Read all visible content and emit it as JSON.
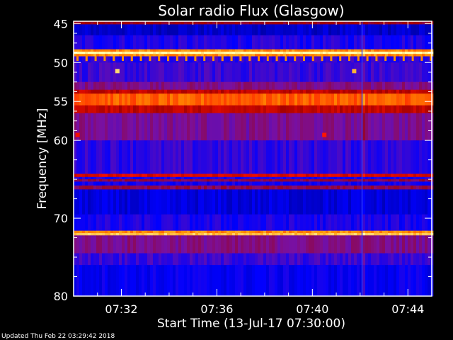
{
  "chart_data": {
    "type": "heatmap",
    "title": "Solar radio Flux (Glasgow)",
    "xlabel": "Start Time (13-Jul-17 07:30:00)",
    "ylabel": "Frequency [MHz]",
    "xlim": [
      "07:30",
      "07:45"
    ],
    "ylim": [
      80,
      44.7
    ],
    "x_ticks": [
      "07:32",
      "07:36",
      "07:40",
      "07:44"
    ],
    "y_ticks": [
      "45",
      "50",
      "55",
      "60",
      "70",
      "80"
    ],
    "colormap": [
      "#000000",
      "#00008c",
      "#0000ff",
      "#7a10a0",
      "#a00000",
      "#ff1000",
      "#ff9000",
      "#ffffb0"
    ],
    "intensity_bands_mhz": [
      {
        "from": 44.7,
        "to": 45.1,
        "level": 0.55
      },
      {
        "from": 45.1,
        "to": 46.5,
        "level": 0.22
      },
      {
        "from": 46.5,
        "to": 48.3,
        "level": 0.32
      },
      {
        "from": 48.3,
        "to": 48.6,
        "level": 0.85
      },
      {
        "from": 48.6,
        "to": 48.9,
        "level": 1.0
      },
      {
        "from": 48.9,
        "to": 49.2,
        "level": 0.85
      },
      {
        "from": 49.2,
        "to": 50.0,
        "level": 0.34
      },
      {
        "from": 50.0,
        "to": 52.5,
        "level": 0.35
      },
      {
        "from": 52.5,
        "to": 53.5,
        "level": 0.45
      },
      {
        "from": 53.5,
        "to": 54.0,
        "level": 0.62
      },
      {
        "from": 54.0,
        "to": 55.5,
        "level": 0.8
      },
      {
        "from": 55.5,
        "to": 56.5,
        "level": 0.62
      },
      {
        "from": 56.5,
        "to": 60.0,
        "level": 0.44
      },
      {
        "from": 60.0,
        "to": 64.3,
        "level": 0.34
      },
      {
        "from": 64.3,
        "to": 64.7,
        "level": 0.66
      },
      {
        "from": 64.7,
        "to": 65.0,
        "level": 0.32
      },
      {
        "from": 65.0,
        "to": 65.3,
        "level": 0.5
      },
      {
        "from": 65.3,
        "to": 65.8,
        "level": 0.3
      },
      {
        "from": 65.8,
        "to": 66.3,
        "level": 0.5
      },
      {
        "from": 66.3,
        "to": 69.5,
        "level": 0.24
      },
      {
        "from": 69.5,
        "to": 71.6,
        "level": 0.31
      },
      {
        "from": 71.6,
        "to": 71.9,
        "level": 0.85
      },
      {
        "from": 71.9,
        "to": 72.2,
        "level": 0.92
      },
      {
        "from": 72.2,
        "to": 74.5,
        "level": 0.45
      },
      {
        "from": 74.5,
        "to": 76.0,
        "level": 0.35
      },
      {
        "from": 76.0,
        "to": 80.0,
        "level": 0.28
      }
    ],
    "spots": [
      {
        "time": "07:31:50",
        "freq": 51.1,
        "level": 0.95
      },
      {
        "time": "07:41:45",
        "freq": 51.1,
        "level": 0.9
      },
      {
        "time": "07:30:10",
        "freq": 59.3,
        "level": 0.7
      },
      {
        "time": "07:40:30",
        "freq": 59.3,
        "level": 0.72
      }
    ],
    "comb_band_mhz": {
      "from": 49.2,
      "to": 49.8,
      "level": 0.85
    },
    "vertical_feature_time": "07:42:05",
    "grid": false
  },
  "footer": {
    "updated": "Updated Thu Feb 22 03:29:42 2018"
  }
}
